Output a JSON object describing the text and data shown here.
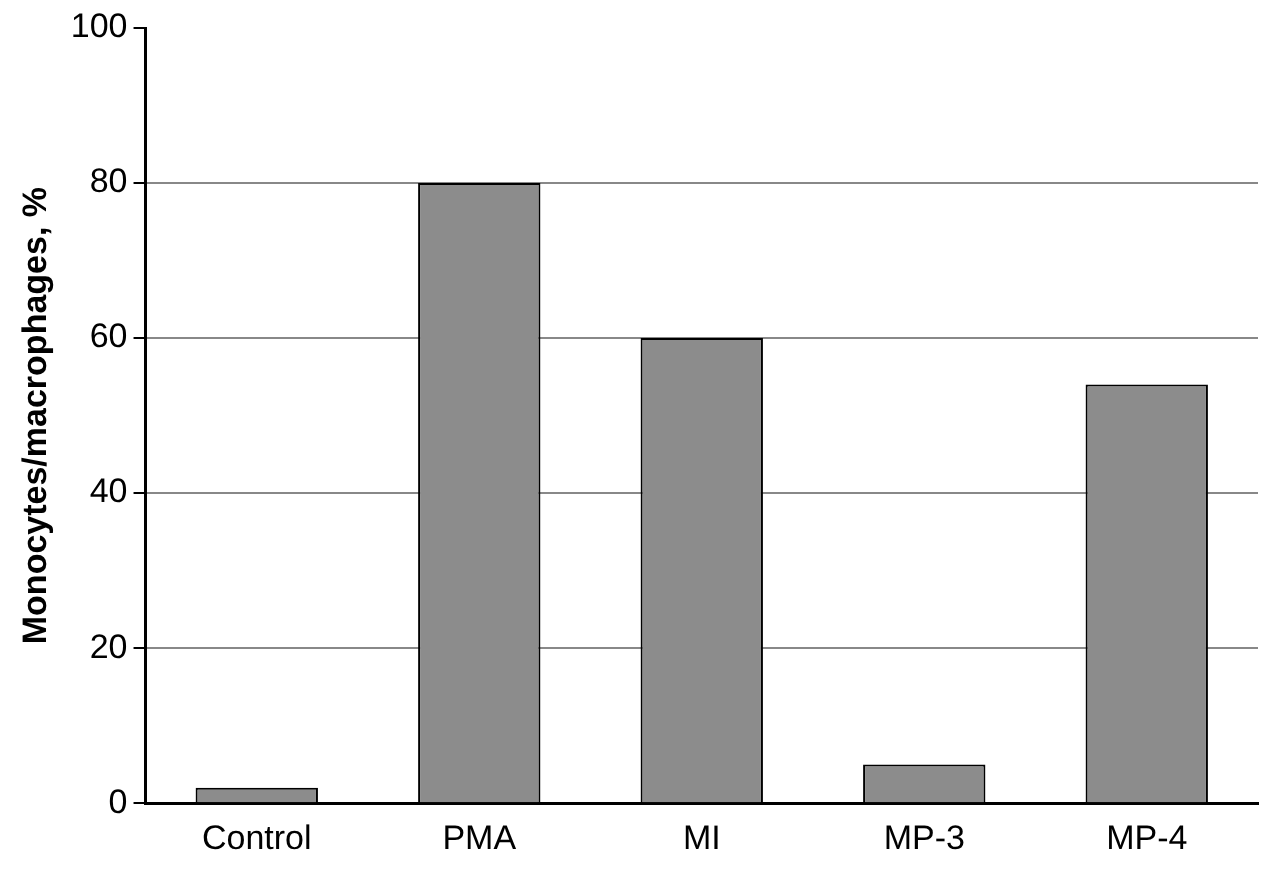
{
  "chart_data": {
    "type": "bar",
    "ylabel": "Monocytes/macrophages, %",
    "categories": [
      "Control",
      "PMA",
      "MI",
      "MP-3",
      "MP-4"
    ],
    "values": [
      2,
      80,
      60,
      5,
      54
    ],
    "color": "#8c8c8c",
    "ylim": [
      0,
      100
    ],
    "yticks": [
      0,
      20,
      40,
      60,
      80,
      100
    ],
    "grid": "y",
    "legend": false
  }
}
